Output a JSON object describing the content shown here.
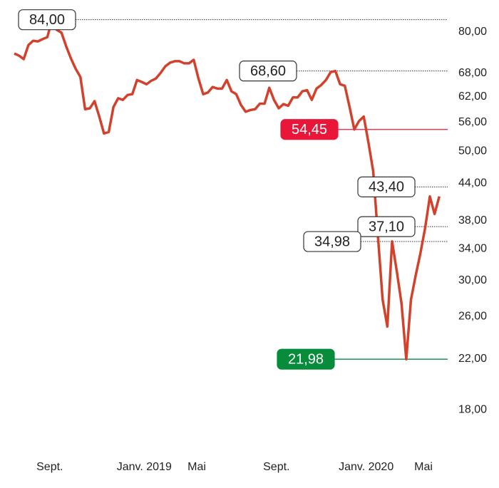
{
  "chart_data": {
    "type": "line",
    "log_scale": true,
    "color": "#d2412b",
    "categories": [
      null,
      null,
      null,
      null,
      null,
      "Sept.",
      null,
      null,
      null,
      null,
      null,
      null,
      null,
      null,
      null,
      null,
      null,
      null,
      null,
      null,
      null,
      null,
      "Janv. 2019",
      null,
      null,
      null,
      null,
      null,
      null,
      null,
      null,
      null,
      null,
      null,
      null,
      null,
      null,
      "Mai",
      null,
      null,
      null,
      null,
      null,
      null,
      null,
      null,
      null,
      null,
      null,
      null,
      null,
      null,
      null,
      "Sept.",
      null,
      null,
      null,
      null,
      null,
      null,
      null,
      null,
      null,
      null,
      null,
      null,
      null,
      null,
      null,
      "Janv. 2020",
      null,
      null,
      null,
      null,
      null,
      null,
      null,
      null,
      null,
      null,
      null,
      null,
      null,
      null,
      null,
      "Mai",
      null,
      null,
      null,
      null,
      null
    ],
    "values": [
      73.5,
      72.9,
      71.9,
      76.0,
      77.3,
      77.1,
      77.8,
      78.4,
      84.0,
      80.7,
      79.8,
      75.6,
      72.1,
      69.2,
      67.0,
      59.0,
      59.2,
      60.9,
      57.3,
      53.6,
      53.9,
      59.5,
      61.6,
      61.2,
      62.4,
      62.6,
      66.2,
      65.7,
      65.1,
      66.0,
      66.6,
      68.1,
      69.9,
      70.9,
      71.3,
      71.3,
      70.7,
      70.7,
      71.7,
      66.6,
      62.6,
      63.0,
      64.4,
      64.0,
      64.0,
      66.2,
      63.3,
      62.6,
      60.0,
      58.4,
      58.8,
      59.0,
      60.3,
      60.3,
      64.2,
      61.2,
      59.2,
      60.2,
      59.8,
      61.8,
      61.8,
      63.3,
      63.6,
      61.2,
      64.0,
      64.9,
      66.2,
      68.3,
      68.6,
      65.1,
      64.7,
      59.5,
      54.45,
      56.3,
      57.3,
      51.7,
      46.2,
      35.8,
      27.8,
      25.0,
      35.0,
      31.1,
      27.4,
      21.98,
      27.8,
      30.6,
      33.4,
      36.9,
      41.8,
      39.0,
      41.8
    ],
    "ylim": [
      15.0,
      90.8
    ],
    "yticks": [
      {
        "value": 80,
        "label": "80,00"
      },
      {
        "value": 68,
        "label": "68,00"
      },
      {
        "value": 62,
        "label": "62,00"
      },
      {
        "value": 56,
        "label": "56,00"
      },
      {
        "value": 50,
        "label": "50,00"
      },
      {
        "value": 44,
        "label": "44,00"
      },
      {
        "value": 38,
        "label": "38,00"
      },
      {
        "value": 34,
        "label": "34,00"
      },
      {
        "value": 30,
        "label": "30,00"
      },
      {
        "value": 26,
        "label": "26,00"
      },
      {
        "value": 22,
        "label": "22,00"
      },
      {
        "value": 18,
        "label": "18,00"
      }
    ],
    "annotations": [
      {
        "value": 84,
        "label": "84,00",
        "color": "#ffffff"
      },
      {
        "value": 68.6,
        "label": "68,60",
        "color": "#ffffff"
      },
      {
        "value": 54.45,
        "label": "54,45",
        "color": "#e8173a"
      },
      {
        "value": 43.4,
        "label": "43,40",
        "color": "#ffffff"
      },
      {
        "value": 37.1,
        "label": "37,10",
        "color": "#ffffff"
      },
      {
        "value": 34.98,
        "label": "34,98",
        "color": "#ffffff"
      },
      {
        "value": 21.98,
        "label": "21,98",
        "color": "#078c3c"
      }
    ]
  }
}
